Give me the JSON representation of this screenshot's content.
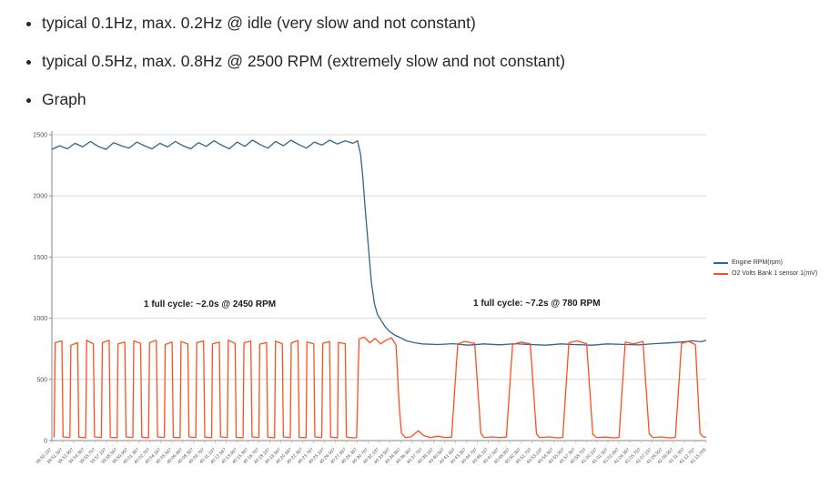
{
  "bullets": {
    "item1": "typical 0.1Hz, max. 0.2Hz @ idle (very slow and not constant)",
    "item2": "typical 0.5Hz, max. 0.8Hz @ 2500 RPM (extremely slow and not constant)",
    "item3": "Graph"
  },
  "chart_data": {
    "type": "line",
    "title": "",
    "xlabel": "",
    "ylabel": "",
    "ylim": [
      0,
      2500
    ],
    "yticks": [
      0,
      500,
      1000,
      1500,
      2000,
      2500
    ],
    "grid": true,
    "legend_position": "right",
    "x_total_seconds": 84.8,
    "x_tick_labels": [
      "39:50.197",
      "39:51.597",
      "39:52.997",
      "39:54.397",
      "39:55.797",
      "39:57.197",
      "39:58.597",
      "39:59.997",
      "40:01.397",
      "40:02.797",
      "40:04.197",
      "40:05.597",
      "40:06.997",
      "40:08.397",
      "40:09.797",
      "40:11.197",
      "40:12.597",
      "40:13.997",
      "40:15.397",
      "40:16.797",
      "40:18.197",
      "40:19.597",
      "40:20.997",
      "40:22.397",
      "40:23.797",
      "40:25.197",
      "40:26.597",
      "40:27.997",
      "40:29.397",
      "40:30.797",
      "40:32.197",
      "40:33.597",
      "40:34.997",
      "40:36.397",
      "40:37.797",
      "40:39.197",
      "40:40.597",
      "40:41.997",
      "40:43.397",
      "40:44.797",
      "40:46.197",
      "40:47.597",
      "40:48.997",
      "40:50.397",
      "40:51.797",
      "40:53.197",
      "40:54.597",
      "40:55.997",
      "40:57.397",
      "40:58.797",
      "41:00.197",
      "41:01.597",
      "41:02.997",
      "41:04.397",
      "41:05.797",
      "41:07.197",
      "41:08.597",
      "41:09.997",
      "41:11.397",
      "41:12.797",
      "41:15.005"
    ],
    "annotations": [
      {
        "text": "1 full cycle: ~2.0s @ 2450 RPM"
      },
      {
        "text": "1 full cycle: ~7.2s @ 780 RPM"
      }
    ],
    "legend": [
      {
        "label": "Engine RPM(rpm)",
        "color": "#31658c"
      },
      {
        "label": "O2 Volts Bank 1 sensor 1(mV)",
        "color": "#ff4e21"
      }
    ],
    "series": [
      {
        "name": "Engine RPM(rpm)",
        "color": "#31658c",
        "points": [
          [
            0,
            2380
          ],
          [
            1,
            2410
          ],
          [
            2,
            2385
          ],
          [
            3,
            2430
          ],
          [
            4,
            2400
          ],
          [
            5,
            2445
          ],
          [
            6,
            2405
          ],
          [
            7,
            2380
          ],
          [
            8,
            2435
          ],
          [
            9,
            2410
          ],
          [
            10,
            2390
          ],
          [
            11,
            2440
          ],
          [
            12,
            2410
          ],
          [
            13,
            2385
          ],
          [
            14,
            2430
          ],
          [
            15,
            2400
          ],
          [
            16,
            2445
          ],
          [
            17,
            2410
          ],
          [
            18,
            2385
          ],
          [
            19,
            2435
          ],
          [
            20,
            2405
          ],
          [
            21,
            2450
          ],
          [
            22,
            2415
          ],
          [
            23,
            2385
          ],
          [
            24,
            2440
          ],
          [
            25,
            2405
          ],
          [
            26,
            2455
          ],
          [
            27,
            2420
          ],
          [
            28,
            2390
          ],
          [
            29,
            2445
          ],
          [
            30,
            2410
          ],
          [
            31,
            2455
          ],
          [
            32,
            2420
          ],
          [
            33,
            2390
          ],
          [
            34,
            2440
          ],
          [
            35,
            2415
          ],
          [
            36,
            2455
          ],
          [
            37,
            2425
          ],
          [
            38,
            2450
          ],
          [
            39,
            2430
          ],
          [
            39.6,
            2450
          ],
          [
            40,
            2340
          ],
          [
            40.3,
            2150
          ],
          [
            40.6,
            1900
          ],
          [
            41,
            1600
          ],
          [
            41.4,
            1300
          ],
          [
            41.8,
            1120
          ],
          [
            42.2,
            1030
          ],
          [
            42.7,
            980
          ],
          [
            43.2,
            930
          ],
          [
            43.8,
            890
          ],
          [
            44.5,
            860
          ],
          [
            45.2,
            840
          ],
          [
            46,
            815
          ],
          [
            47,
            800
          ],
          [
            48,
            790
          ],
          [
            50,
            785
          ],
          [
            52,
            792
          ],
          [
            54,
            780
          ],
          [
            56,
            790
          ],
          [
            58,
            783
          ],
          [
            60,
            792
          ],
          [
            62,
            785
          ],
          [
            64,
            780
          ],
          [
            66,
            790
          ],
          [
            68,
            784
          ],
          [
            70,
            780
          ],
          [
            72,
            790
          ],
          [
            74,
            786
          ],
          [
            76,
            782
          ],
          [
            78,
            792
          ],
          [
            80,
            798
          ],
          [
            81.5,
            805
          ],
          [
            83,
            815
          ],
          [
            84.2,
            808
          ],
          [
            84.8,
            820
          ]
        ]
      },
      {
        "name": "O2 Volts Bank 1 sensor 1(mV)",
        "color": "#ff4e21",
        "points": [
          [
            0.3,
            25
          ],
          [
            0.42,
            800
          ],
          [
            1.3,
            815
          ],
          [
            1.45,
            30
          ],
          [
            2.34,
            25
          ],
          [
            2.46,
            780
          ],
          [
            3.34,
            800
          ],
          [
            3.49,
            28
          ],
          [
            4.38,
            22
          ],
          [
            4.5,
            820
          ],
          [
            5.38,
            790
          ],
          [
            5.53,
            30
          ],
          [
            6.42,
            25
          ],
          [
            6.54,
            800
          ],
          [
            7.42,
            820
          ],
          [
            7.57,
            26
          ],
          [
            8.46,
            24
          ],
          [
            8.58,
            790
          ],
          [
            9.46,
            805
          ],
          [
            9.61,
            30
          ],
          [
            10.5,
            25
          ],
          [
            10.62,
            815
          ],
          [
            11.5,
            795
          ],
          [
            11.65,
            28
          ],
          [
            12.54,
            22
          ],
          [
            12.66,
            800
          ],
          [
            13.54,
            820
          ],
          [
            13.69,
            30
          ],
          [
            14.58,
            25
          ],
          [
            14.7,
            785
          ],
          [
            15.58,
            805
          ],
          [
            15.73,
            27
          ],
          [
            16.62,
            24
          ],
          [
            16.74,
            810
          ],
          [
            17.62,
            790
          ],
          [
            17.77,
            30
          ],
          [
            18.66,
            25
          ],
          [
            18.78,
            800
          ],
          [
            19.66,
            815
          ],
          [
            19.81,
            28
          ],
          [
            20.7,
            23
          ],
          [
            20.82,
            790
          ],
          [
            21.7,
            805
          ],
          [
            21.85,
            30
          ],
          [
            22.74,
            25
          ],
          [
            22.86,
            820
          ],
          [
            23.74,
            795
          ],
          [
            23.89,
            27
          ],
          [
            24.78,
            24
          ],
          [
            24.9,
            800
          ],
          [
            25.78,
            812
          ],
          [
            25.93,
            30
          ],
          [
            26.82,
            25
          ],
          [
            26.94,
            788
          ],
          [
            27.82,
            802
          ],
          [
            27.97,
            28
          ],
          [
            28.86,
            22
          ],
          [
            28.98,
            812
          ],
          [
            29.86,
            792
          ],
          [
            30.01,
            30
          ],
          [
            30.9,
            25
          ],
          [
            31.02,
            798
          ],
          [
            31.9,
            818
          ],
          [
            32.05,
            26
          ],
          [
            32.94,
            24
          ],
          [
            33.06,
            806
          ],
          [
            33.94,
            790
          ],
          [
            34.09,
            30
          ],
          [
            34.98,
            25
          ],
          [
            35.1,
            795
          ],
          [
            35.98,
            810
          ],
          [
            36.13,
            28
          ],
          [
            37.02,
            23
          ],
          [
            37.14,
            802
          ],
          [
            38.02,
            792
          ],
          [
            38.17,
            30
          ],
          [
            38.6,
            25
          ],
          [
            39.3,
            22
          ],
          [
            39.5,
            25
          ],
          [
            39.8,
            830
          ],
          [
            40.5,
            845
          ],
          [
            41.2,
            800
          ],
          [
            41.9,
            835
          ],
          [
            42.6,
            790
          ],
          [
            43.3,
            820
          ],
          [
            44,
            840
          ],
          [
            44.6,
            780
          ],
          [
            45,
            300
          ],
          [
            45.3,
            60
          ],
          [
            45.8,
            25
          ],
          [
            46.5,
            30
          ],
          [
            47.5,
            80
          ],
          [
            48.2,
            40
          ],
          [
            49,
            25
          ],
          [
            50,
            35
          ],
          [
            51,
            25
          ],
          [
            51.8,
            28
          ],
          [
            52.6,
            790
          ],
          [
            53.5,
            810
          ],
          [
            54.8,
            795
          ],
          [
            55.6,
            60
          ],
          [
            56,
            25
          ],
          [
            57,
            30
          ],
          [
            58,
            25
          ],
          [
            58.9,
            28
          ],
          [
            59.7,
            785
          ],
          [
            60.8,
            805
          ],
          [
            62,
            790
          ],
          [
            62.8,
            55
          ],
          [
            63.2,
            25
          ],
          [
            64.5,
            30
          ],
          [
            65.5,
            22
          ],
          [
            66.2,
            25
          ],
          [
            67,
            800
          ],
          [
            68.1,
            815
          ],
          [
            69.3,
            790
          ],
          [
            70.1,
            50
          ],
          [
            70.6,
            25
          ],
          [
            71.8,
            28
          ],
          [
            72.8,
            22
          ],
          [
            73.5,
            25
          ],
          [
            74.3,
            805
          ],
          [
            75.4,
            790
          ],
          [
            76.6,
            810
          ],
          [
            77.4,
            55
          ],
          [
            77.9,
            25
          ],
          [
            79,
            30
          ],
          [
            80,
            22
          ],
          [
            80.8,
            25
          ],
          [
            81.6,
            795
          ],
          [
            82.5,
            810
          ],
          [
            83.4,
            785
          ],
          [
            84,
            60
          ],
          [
            84.4,
            30
          ],
          [
            84.8,
            28
          ]
        ]
      }
    ]
  }
}
